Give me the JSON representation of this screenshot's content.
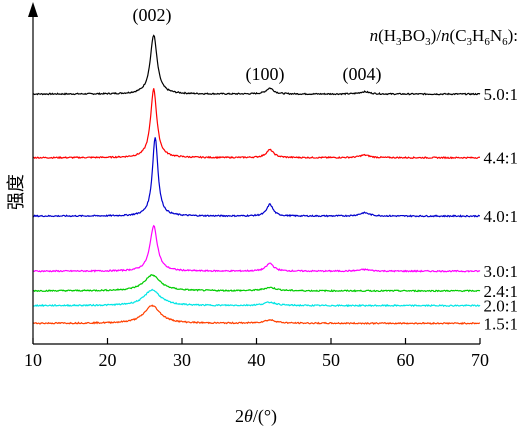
{
  "chart_data": {
    "type": "line",
    "title": "",
    "xlabel_prefix": "2",
    "xlabel_theta": "θ",
    "xlabel_suffix": "/(°)",
    "ylabel": "强度",
    "xlim": [
      10,
      70
    ],
    "xticks": [
      10,
      20,
      30,
      40,
      50,
      60,
      70
    ],
    "xtick_labels": [
      "10",
      "20",
      "30",
      "40",
      "50",
      "60",
      "70"
    ],
    "grid": false,
    "y_scale": "arbitrary",
    "legend_title": {
      "n1": "n",
      "open1": "(H",
      "sub1": "3",
      "mid1": "BO",
      "sub2": "3",
      "close1": ")/",
      "n2": "n",
      "open2": "(C",
      "sub3": "3",
      "mid2": "H",
      "sub4": "6",
      "mid3": "N",
      "sub5": "6",
      "close2": "):"
    },
    "peak_labels": [
      {
        "text": "(002)",
        "x": 26.2
      },
      {
        "text": "(100)",
        "x": 41.8
      },
      {
        "text": "(004)",
        "x": 54.5
      }
    ],
    "series": [
      {
        "name": "5.0:1",
        "color": "#000000",
        "baseline": 0.762,
        "peaks": [
          [
            26.2,
            0.18,
            0.55
          ],
          [
            41.8,
            0.018,
            0.6
          ],
          [
            54.5,
            0.007,
            0.8
          ]
        ]
      },
      {
        "name": "4.4:1",
        "color": "#ff0000",
        "baseline": 0.568,
        "peaks": [
          [
            26.2,
            0.21,
            0.5
          ],
          [
            41.8,
            0.024,
            0.6
          ],
          [
            54.5,
            0.008,
            0.8
          ]
        ]
      },
      {
        "name": "4.0:1",
        "color": "#0000cc",
        "baseline": 0.39,
        "peaks": [
          [
            26.4,
            0.24,
            0.45
          ],
          [
            41.8,
            0.036,
            0.5
          ],
          [
            54.5,
            0.01,
            0.8
          ]
        ]
      },
      {
        "name": "3.0:1",
        "color": "#ff00ff",
        "baseline": 0.222,
        "peaks": [
          [
            26.2,
            0.138,
            0.6
          ],
          [
            41.8,
            0.024,
            0.6
          ],
          [
            54.5,
            0.005,
            0.9
          ]
        ]
      },
      {
        "name": "2.4:1",
        "color": "#00cc00",
        "baseline": 0.162,
        "peaks": [
          [
            26.0,
            0.048,
            1.3
          ],
          [
            41.8,
            0.01,
            1.0
          ]
        ]
      },
      {
        "name": "2.0:1",
        "color": "#00e5e5",
        "baseline": 0.117,
        "peaks": [
          [
            26.0,
            0.048,
            1.3
          ],
          [
            41.8,
            0.01,
            1.0
          ]
        ]
      },
      {
        "name": "1.5:1",
        "color": "#ff4000",
        "baseline": 0.063,
        "peaks": [
          [
            26.0,
            0.054,
            1.3
          ],
          [
            41.8,
            0.01,
            1.0
          ]
        ]
      }
    ]
  }
}
